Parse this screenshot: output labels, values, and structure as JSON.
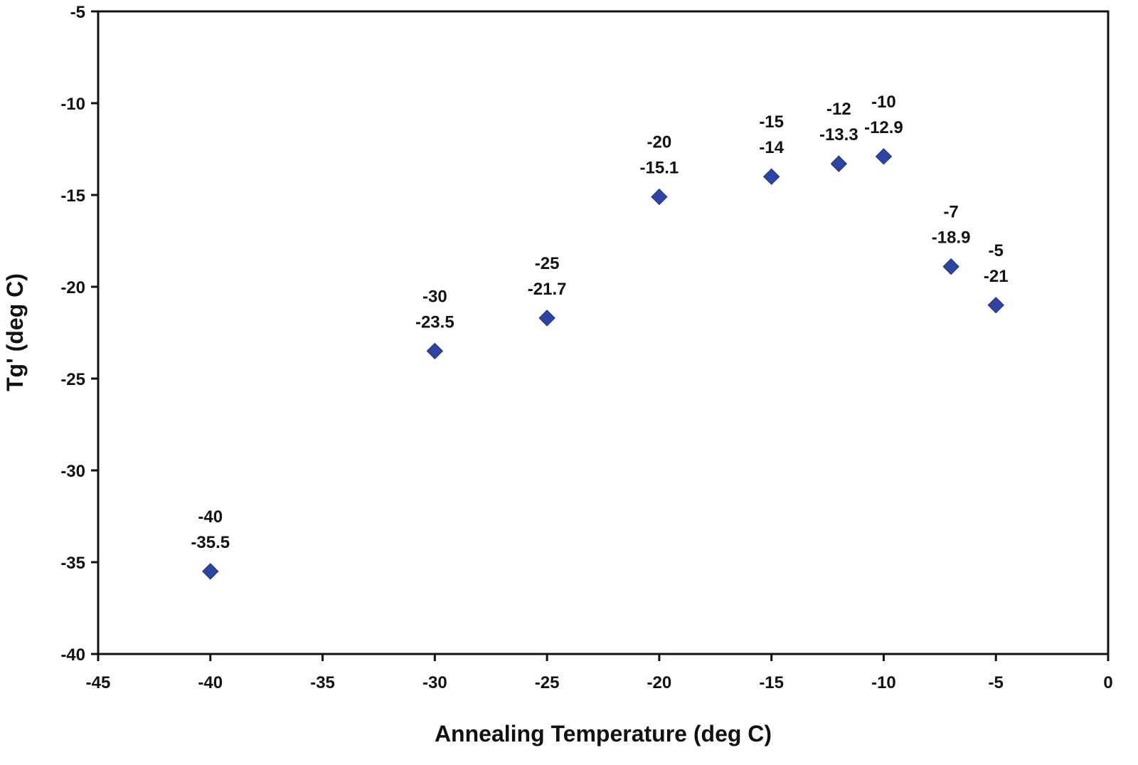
{
  "chart_data": {
    "type": "scatter",
    "title": "",
    "xlabel": "Annealing Temperature (deg C)",
    "ylabel": "Tg' (deg C)",
    "xlim": [
      -45,
      0
    ],
    "ylim": [
      -40,
      -5
    ],
    "xticks": [
      -45,
      -40,
      -35,
      -30,
      -25,
      -20,
      -15,
      -10,
      -5,
      0
    ],
    "yticks": [
      -40,
      -35,
      -30,
      -25,
      -20,
      -15,
      -10,
      -5
    ],
    "grid": false,
    "legend": "none",
    "marker": "diamond",
    "marker_color": "#2E44A4",
    "series": [
      {
        "points": [
          {
            "x": -40,
            "y": -35.5,
            "label_x": "-40",
            "label_y": "-35.5"
          },
          {
            "x": -30,
            "y": -23.5,
            "label_x": "-30",
            "label_y": "-23.5"
          },
          {
            "x": -25,
            "y": -21.7,
            "label_x": "-25",
            "label_y": "-21.7"
          },
          {
            "x": -20,
            "y": -15.1,
            "label_x": "-20",
            "label_y": "-15.1"
          },
          {
            "x": -15,
            "y": -14,
            "label_x": "-15",
            "label_y": "-14"
          },
          {
            "x": -12,
            "y": -13.3,
            "label_x": "-12",
            "label_y": "-13.3"
          },
          {
            "x": -10,
            "y": -12.9,
            "label_x": "-10",
            "label_y": "-12.9"
          },
          {
            "x": -7,
            "y": -18.9,
            "label_x": "-7",
            "label_y": "-18.9"
          },
          {
            "x": -5,
            "y": -21,
            "label_x": "-5",
            "label_y": "-21"
          }
        ]
      }
    ]
  }
}
